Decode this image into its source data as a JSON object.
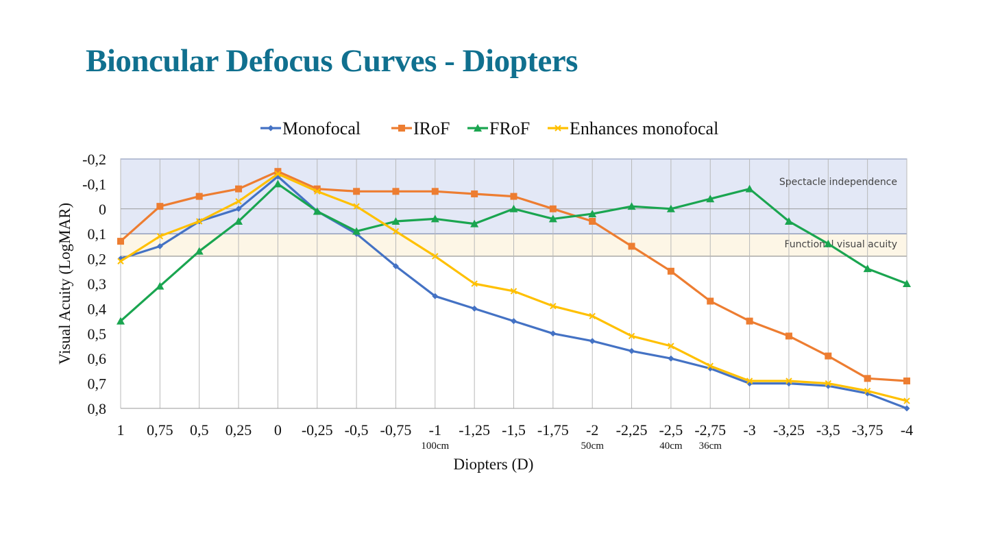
{
  "slide": {
    "title": "Bioncular Defocus Curves - Diopters"
  },
  "chart_data": {
    "type": "line",
    "xlabel": "Diopters (D)",
    "ylabel": "Visual Acuity (LogMAR)",
    "ylim": [
      -0.2,
      0.8
    ],
    "y_inverted": true,
    "y_ticks": [
      "-0,2",
      "-0,1",
      "0",
      "0,1",
      "0,2",
      "0,3",
      "0,4",
      "0,5",
      "0,6",
      "0,7",
      "0,8"
    ],
    "y_tick_values": [
      -0.2,
      -0.1,
      0,
      0.1,
      0.2,
      0.3,
      0.4,
      0.5,
      0.6,
      0.7,
      0.8
    ],
    "categories": [
      "1",
      "0,75",
      "0,5",
      "0,25",
      "0",
      "-0,25",
      "-0,5",
      "-0,75",
      "-1",
      "-1,25",
      "-1,5",
      "-1,75",
      "-2",
      "-2,25",
      "-2,5",
      "-2,75",
      "-3",
      "-3,25",
      "-3,5",
      "-3,75",
      "-4"
    ],
    "distance_labels": [
      {
        "index": 8,
        "text": "100cm"
      },
      {
        "index": 12,
        "text": "50cm"
      },
      {
        "index": 14,
        "text": "40cm"
      },
      {
        "index": 15,
        "text": "36cm"
      }
    ],
    "zones": [
      {
        "name": "Spectacle independence",
        "from": -0.2,
        "to": 0.1,
        "color": "#e3e8f6"
      },
      {
        "name": "Functional visual acuity",
        "from": 0.1,
        "to": 0.19,
        "color": "#fdf6e6"
      }
    ],
    "series": [
      {
        "name": "Monofocal",
        "color": "#4472c4",
        "marker": "diamond",
        "values": [
          0.2,
          0.15,
          0.05,
          0.0,
          -0.13,
          0.01,
          0.1,
          0.23,
          0.35,
          0.4,
          0.45,
          0.5,
          0.53,
          0.57,
          0.6,
          0.64,
          0.7,
          0.7,
          0.71,
          0.74,
          0.8
        ]
      },
      {
        "name": "IRoF",
        "color": "#ed7d31",
        "marker": "square",
        "values": [
          0.13,
          -0.01,
          -0.05,
          -0.08,
          -0.15,
          -0.08,
          -0.07,
          -0.07,
          -0.07,
          -0.06,
          -0.05,
          0.0,
          0.05,
          0.15,
          0.25,
          0.37,
          0.45,
          0.51,
          0.59,
          0.68,
          0.69
        ]
      },
      {
        "name": "FRoF",
        "color": "#1aa550",
        "marker": "triangle",
        "values": [
          0.45,
          0.31,
          0.17,
          0.05,
          -0.1,
          0.01,
          0.09,
          0.05,
          0.04,
          0.06,
          0.0,
          0.04,
          0.02,
          -0.01,
          0.0,
          -0.04,
          -0.08,
          0.05,
          0.14,
          0.24,
          0.3
        ]
      },
      {
        "name": "Enhances monofocal",
        "color": "#ffc000",
        "marker": "x",
        "values": [
          0.21,
          0.11,
          0.05,
          -0.03,
          -0.14,
          -0.07,
          -0.01,
          0.09,
          0.19,
          0.3,
          0.33,
          0.39,
          0.43,
          0.51,
          0.55,
          0.63,
          0.69,
          0.69,
          0.7,
          0.73,
          0.77
        ]
      }
    ]
  }
}
